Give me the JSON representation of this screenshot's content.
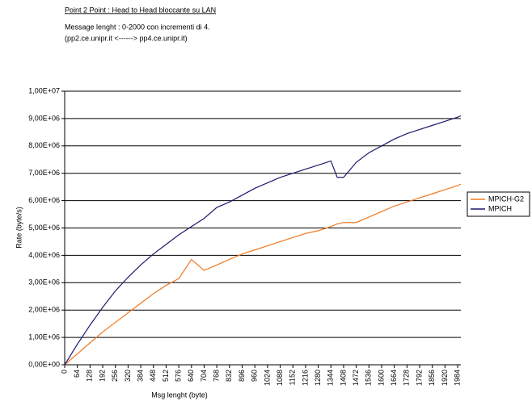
{
  "chart_data": {
    "type": "line",
    "title": "Point 2 Point  :  Head to Head bloccante su LAN",
    "subtitle": "Message lenght : 0-2000 con incrementi di 4.",
    "note": "(pp2.ce.unipr.it    <------>   pp4.ce.unipr.it)",
    "xlabel": "Msg lenght (byte)",
    "ylabel": "Rate (byte/s)",
    "x": [
      0,
      64,
      128,
      192,
      256,
      320,
      384,
      448,
      512,
      576,
      640,
      704,
      768,
      832,
      896,
      960,
      1024,
      1088,
      1152,
      1216,
      1280,
      1344,
      1376,
      1408,
      1472,
      1536,
      1600,
      1664,
      1728,
      1792,
      1856,
      1920,
      1984,
      2000
    ],
    "series": [
      {
        "name": "MPICH-G2",
        "color": "#f07820",
        "values": [
          0,
          400000,
          800000,
          1200000,
          1550000,
          1900000,
          2250000,
          2600000,
          2900000,
          3150000,
          3850000,
          3450000,
          3650000,
          3850000,
          4050000,
          4200000,
          4350000,
          4500000,
          4650000,
          4800000,
          4900000,
          5050000,
          5150000,
          5200000,
          5200000,
          5400000,
          5600000,
          5800000,
          5950000,
          6100000,
          6250000,
          6400000,
          6550000,
          6600000
        ]
      },
      {
        "name": "MPICH",
        "color": "#1a1a6e",
        "values": [
          0,
          750000,
          1450000,
          2100000,
          2700000,
          3200000,
          3650000,
          4050000,
          4400000,
          4750000,
          5050000,
          5350000,
          5750000,
          5950000,
          6200000,
          6450000,
          6650000,
          6850000,
          7000000,
          7150000,
          7300000,
          7450000,
          6850000,
          6850000,
          7400000,
          7750000,
          8000000,
          8250000,
          8450000,
          8600000,
          8750000,
          8900000,
          9050000,
          9100000
        ]
      }
    ],
    "xlim": [
      0,
      2000
    ],
    "xticks": [
      0,
      64,
      128,
      192,
      256,
      320,
      384,
      448,
      512,
      576,
      640,
      704,
      768,
      832,
      896,
      960,
      1024,
      1088,
      1152,
      1216,
      1280,
      1344,
      1408,
      1472,
      1536,
      1600,
      1664,
      1728,
      1792,
      1856,
      1920,
      1984
    ],
    "ylim": [
      0,
      10000000
    ],
    "yticks": [
      {
        "value": 0,
        "label": "0,00E+00"
      },
      {
        "value": 1000000,
        "label": "1,00E+06"
      },
      {
        "value": 2000000,
        "label": "2,00E+06"
      },
      {
        "value": 3000000,
        "label": "3,00E+06"
      },
      {
        "value": 4000000,
        "label": "4,00E+06"
      },
      {
        "value": 5000000,
        "label": "5,00E+06"
      },
      {
        "value": 6000000,
        "label": "6,00E+06"
      },
      {
        "value": 7000000,
        "label": "7,00E+06"
      },
      {
        "value": 8000000,
        "label": "8,00E+06"
      },
      {
        "value": 9000000,
        "label": "9,00E+06"
      },
      {
        "value": 10000000,
        "label": "1,00E+07"
      }
    ],
    "grid": true,
    "legend": "right"
  }
}
